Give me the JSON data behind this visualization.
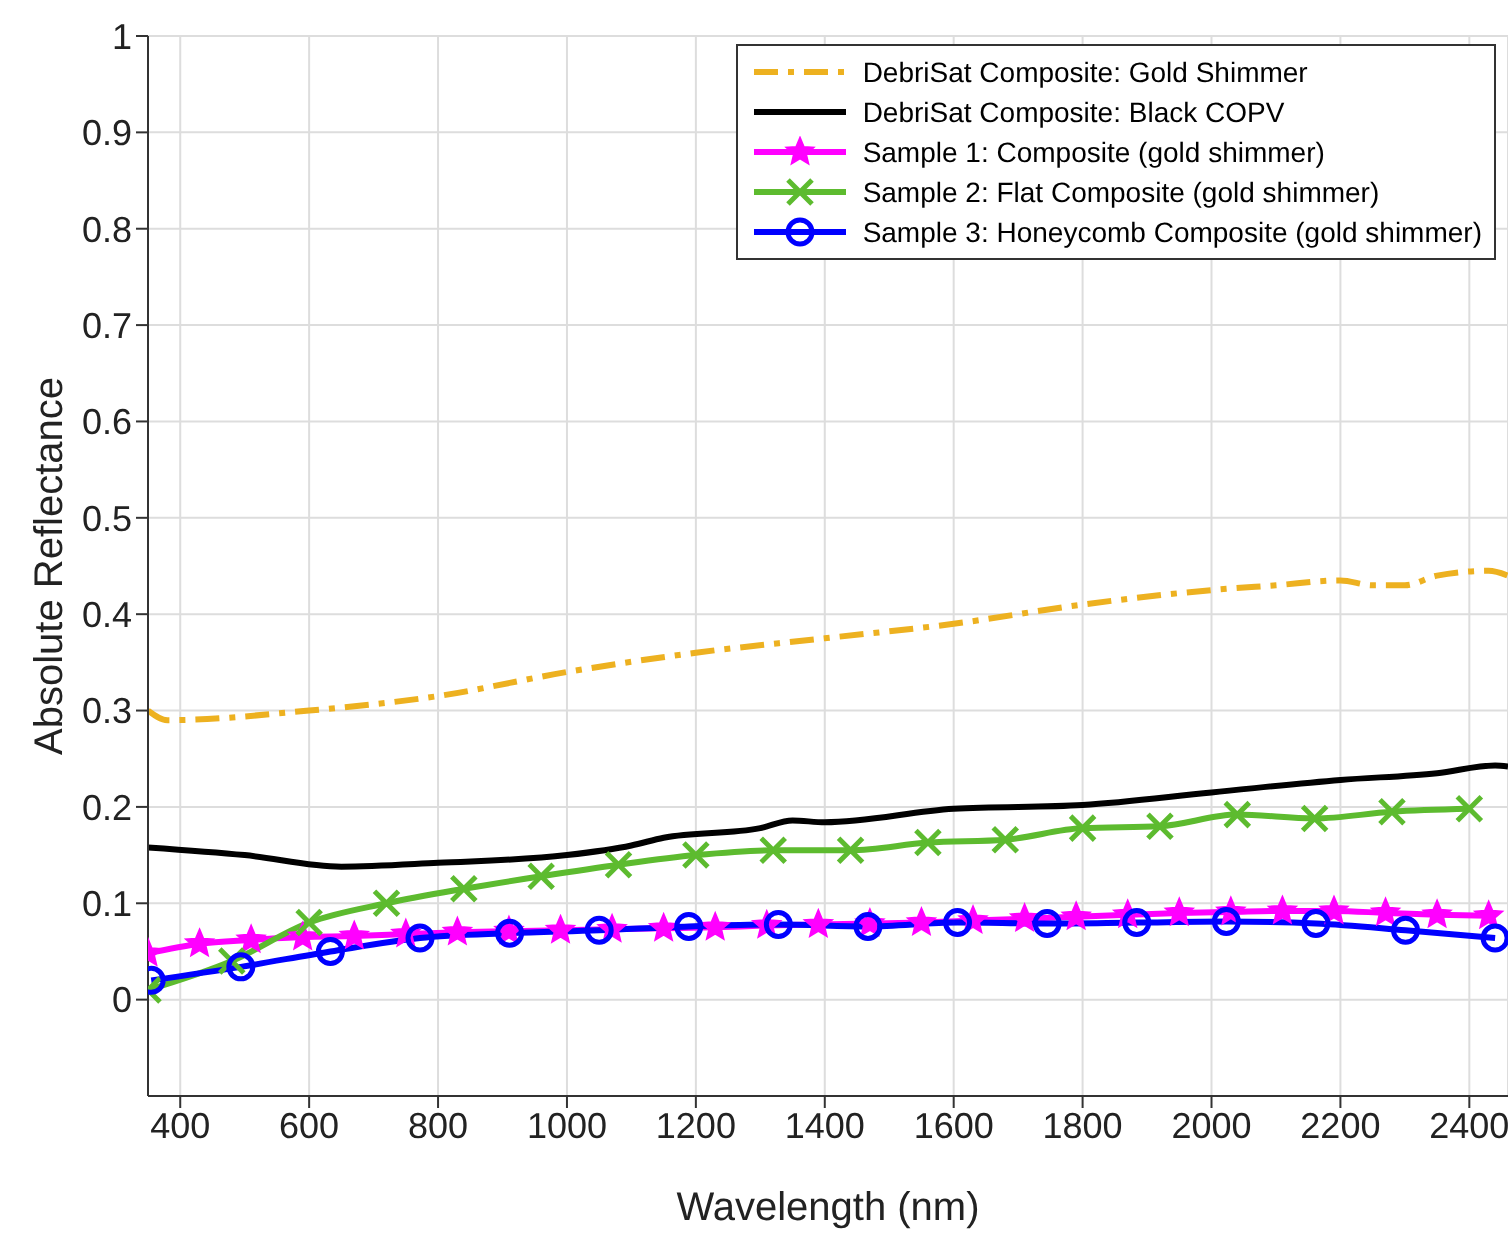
{
  "chart_data": {
    "type": "line",
    "xlabel": "Wavelength (nm)",
    "ylabel": "Absolute Reflectance",
    "xlim": [
      350,
      2460
    ],
    "xticks": [
      400,
      600,
      800,
      1000,
      1200,
      1400,
      1600,
      1800,
      2000,
      2200,
      2400
    ],
    "ylim": [
      -0.1,
      1
    ],
    "yticks": [
      0,
      0.1,
      0.2,
      0.3,
      0.4,
      0.5,
      0.6,
      0.7,
      0.8,
      0.9,
      1
    ],
    "grid": true,
    "legend": "top right",
    "series": [
      {
        "name": "DebriSat Composite: Gold Shimmer",
        "color": "#edb120",
        "line_style": "dashed",
        "marker": "none",
        "x": [
          350,
          380,
          600,
          800,
          1000,
          1200,
          1400,
          1600,
          1800,
          2000,
          2100,
          2200,
          2250,
          2300,
          2350,
          2430,
          2460
        ],
        "values": [
          0.3,
          0.29,
          0.3,
          0.315,
          0.34,
          0.36,
          0.375,
          0.39,
          0.41,
          0.425,
          0.43,
          0.435,
          0.43,
          0.43,
          0.44,
          0.445,
          0.44
        ]
      },
      {
        "name": "DebriSat Composite: Black COPV",
        "color": "#000000",
        "line_style": "solid",
        "marker": "none",
        "x": [
          350,
          500,
          650,
          800,
          1000,
          1100,
          1150,
          1300,
          1350,
          1400,
          1600,
          1800,
          2000,
          2200,
          2350,
          2440,
          2460
        ],
        "values": [
          0.158,
          0.15,
          0.138,
          0.142,
          0.15,
          0.16,
          0.168,
          0.178,
          0.186,
          0.184,
          0.198,
          0.202,
          0.215,
          0.228,
          0.235,
          0.243,
          0.242
        ]
      },
      {
        "name": "Sample 1: Composite (gold shimmer)",
        "color": "#ff00ff",
        "line_style": "solid",
        "marker": "star",
        "x": [
          350,
          430,
          510,
          590,
          670,
          750,
          830,
          910,
          990,
          1070,
          1150,
          1230,
          1310,
          1390,
          1470,
          1550,
          1630,
          1710,
          1790,
          1870,
          1950,
          2030,
          2110,
          2190,
          2270,
          2350,
          2430
        ],
        "values": [
          0.048,
          0.058,
          0.062,
          0.065,
          0.066,
          0.068,
          0.07,
          0.071,
          0.072,
          0.073,
          0.074,
          0.075,
          0.077,
          0.078,
          0.079,
          0.08,
          0.082,
          0.084,
          0.086,
          0.088,
          0.09,
          0.091,
          0.092,
          0.092,
          0.09,
          0.088,
          0.087
        ]
      },
      {
        "name": "Sample 2: Flat Composite (gold shimmer)",
        "color": "#5dbb2f",
        "line_style": "solid",
        "marker": "cross",
        "x": [
          350,
          480,
          600,
          720,
          840,
          960,
          1080,
          1200,
          1320,
          1440,
          1560,
          1680,
          1800,
          1920,
          2040,
          2160,
          2280,
          2400
        ],
        "values": [
          0.01,
          0.04,
          0.08,
          0.1,
          0.115,
          0.128,
          0.14,
          0.15,
          0.155,
          0.155,
          0.163,
          0.166,
          0.178,
          0.18,
          0.192,
          0.188,
          0.195,
          0.198
        ]
      },
      {
        "name": "Sample 3: Honeycomb Composite (gold shimmer)",
        "color": "#0000ff",
        "line_style": "solid",
        "marker": "circle",
        "x": [
          355,
          494,
          633,
          772,
          911,
          1050,
          1189,
          1328,
          1467,
          1606,
          1745,
          1884,
          2023,
          2162,
          2301,
          2440
        ],
        "values": [
          0.02,
          0.034,
          0.05,
          0.064,
          0.069,
          0.072,
          0.076,
          0.078,
          0.076,
          0.08,
          0.079,
          0.08,
          0.081,
          0.079,
          0.072,
          0.064
        ]
      }
    ]
  }
}
